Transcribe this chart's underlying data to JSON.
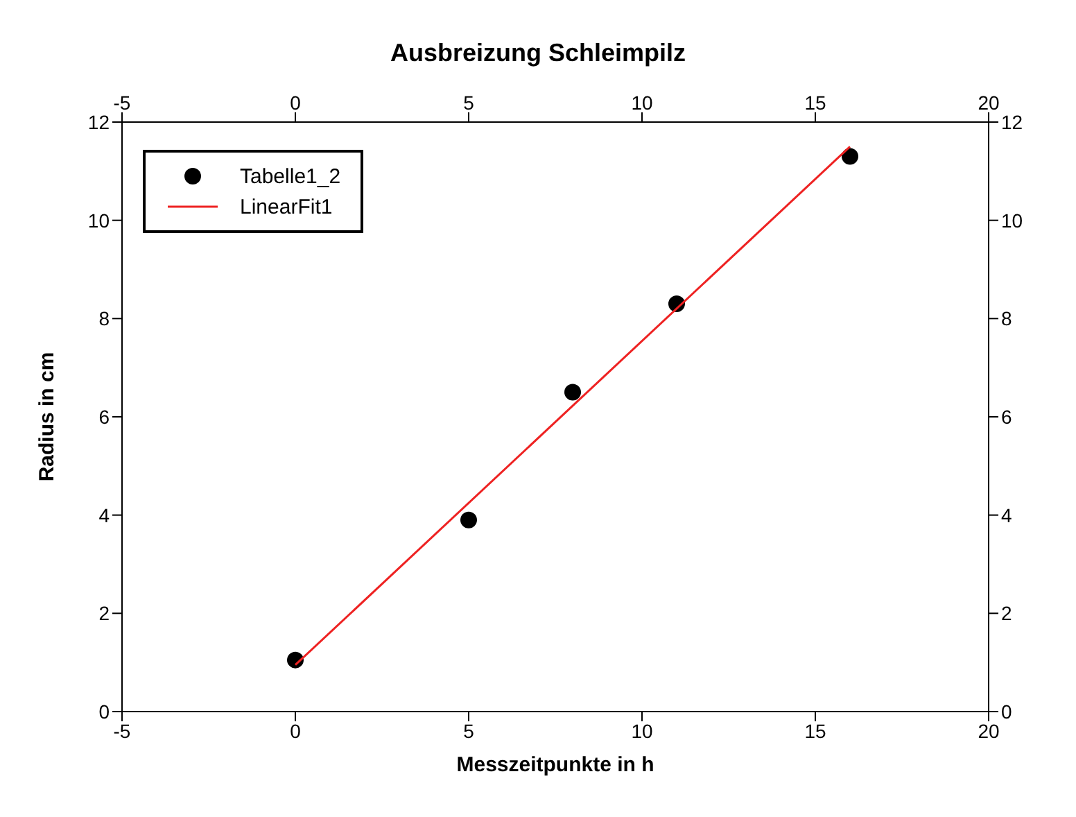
{
  "chart_data": {
    "type": "scatter",
    "title": "Ausbreizung Schleimpilz",
    "xlabel": "Messzeitpunkte in h",
    "ylabel": "Radius in cm",
    "series": [
      {
        "name": "Tabelle1_2",
        "color": "#000000",
        "marker": "circle",
        "x": [
          0,
          5,
          8,
          11,
          16
        ],
        "values": [
          1.05,
          3.9,
          6.5,
          8.3,
          11.3
        ]
      },
      {
        "name": "LinearFit1",
        "type": "line",
        "color": "#ee2222",
        "marker": "none",
        "line_style": "solid",
        "x": [
          0,
          16
        ],
        "values": [
          0.95,
          11.5
        ]
      }
    ],
    "xlim": [
      -5,
      20
    ],
    "xticks": [
      -5,
      0,
      5,
      10,
      15,
      20
    ],
    "x2lim": [
      -5,
      20
    ],
    "x2ticks": [
      -5,
      0,
      5,
      10,
      15,
      20
    ],
    "ylim": [
      0,
      12
    ],
    "yticks": [
      0,
      2,
      4,
      6,
      8,
      10,
      12
    ],
    "y2lim": [
      0,
      12
    ],
    "y2ticks": [
      0,
      2,
      4,
      6,
      8,
      10,
      12
    ],
    "grid": false,
    "legend": "top left"
  }
}
